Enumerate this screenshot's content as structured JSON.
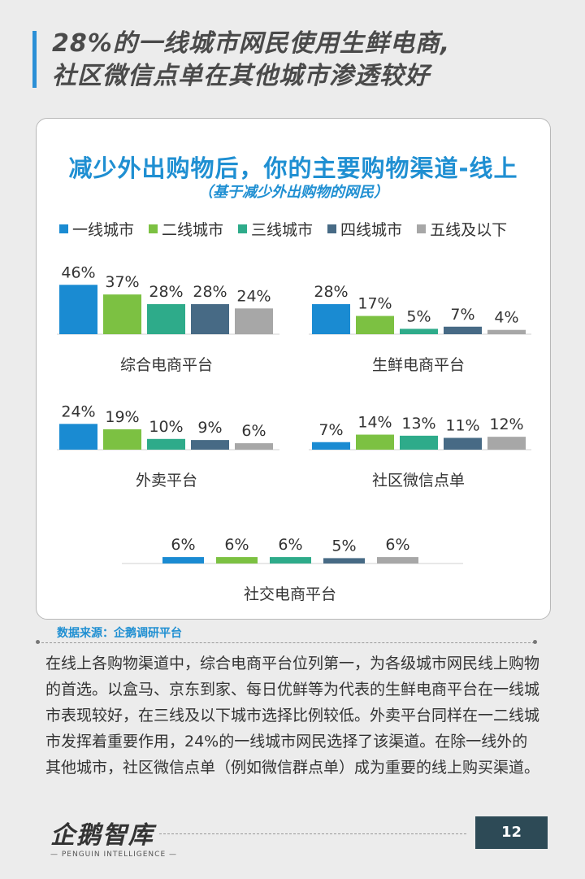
{
  "page_title_line1": "28%的一线城市网民使用生鲜电商,",
  "page_title_line2": "社区微信点单在其他城市渗透较好",
  "source": "数据来源：企鹅调研平台",
  "body_text": "在线上各购物渠道中，综合电商平台位列第一，为各级城市网民线上购物的首选。以盒马、京东到家、每日优鲜等为代表的生鲜电商平台在一线城市表现较好，在三线及以下城市选择比例较低。外卖平台同样在一二线城市发挥着重要作用，24%的一线城市网民选择了该渠道。在除一线外的其他城市，社区微信点单（例如微信群点单）成为重要的线上购买渠道。",
  "logo_text": "企鹅智库",
  "logo_sub": "— PENGUIN INTELLIGENCE —",
  "page_number": "12",
  "chart_data": {
    "type": "bar",
    "title": "减少外出购物后，你的主要购物渠道-线上",
    "subtitle": "（基于减少外出购物的网民）",
    "legend_placement": "top",
    "series": [
      {
        "name": "一线城市",
        "color": "#1a8bd2"
      },
      {
        "name": "二线城市",
        "color": "#7cc142"
      },
      {
        "name": "三线城市",
        "color": "#2eab8a"
      },
      {
        "name": "四线城市",
        "color": "#476a85"
      },
      {
        "name": "五线及以下",
        "color": "#a7a7a7"
      }
    ],
    "groups": [
      {
        "category": "综合电商平台",
        "values": [
          46,
          37,
          28,
          28,
          24
        ]
      },
      {
        "category": "生鲜电商平台",
        "values": [
          28,
          17,
          5,
          7,
          4
        ]
      },
      {
        "category": "外卖平台",
        "values": [
          24,
          19,
          10,
          9,
          6
        ]
      },
      {
        "category": "社区微信点单",
        "values": [
          7,
          14,
          13,
          11,
          12
        ]
      },
      {
        "category": "社交电商平台",
        "values": [
          6,
          6,
          6,
          5,
          6
        ]
      }
    ],
    "value_suffix": "%"
  }
}
